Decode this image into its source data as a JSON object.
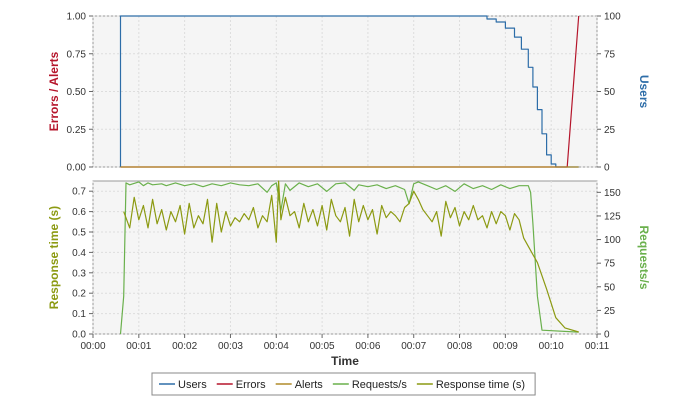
{
  "legend": [
    {
      "label": "Users",
      "color": "#2d6da8"
    },
    {
      "label": "Errors",
      "color": "#b5152b"
    },
    {
      "label": "Alerts",
      "color": "#b08b2a"
    },
    {
      "label": "Requests/s",
      "color": "#6ab04c"
    },
    {
      "label": "Response time (s)",
      "color": "#8c9a12"
    }
  ],
  "chart_data": [
    {
      "type": "line",
      "panel": "top",
      "x_unit": "minutes",
      "xlim": [
        0,
        11
      ],
      "left_axis": {
        "label": "Errors / Alerts",
        "color": "#b5152b",
        "ylim": [
          0,
          1
        ],
        "ticks": [
          "0.00",
          "0.25",
          "0.50",
          "0.75",
          "1.00"
        ]
      },
      "right_axis": {
        "label": "Users",
        "color": "#2d6da8",
        "ylim": [
          0,
          100
        ],
        "ticks": [
          "0",
          "25",
          "50",
          "75",
          "100"
        ]
      },
      "grid": true,
      "series": [
        {
          "name": "Users",
          "axis": "right",
          "color": "#2d6da8",
          "step": true,
          "x": [
            0.6,
            0.6,
            8.5,
            8.6,
            8.8,
            9.0,
            9.2,
            9.35,
            9.5,
            9.6,
            9.7,
            9.8,
            9.9,
            10.0,
            10.1,
            10.6
          ],
          "y": [
            0,
            100,
            100,
            98,
            96,
            92,
            86,
            78,
            66,
            53,
            38,
            22,
            8,
            2,
            0,
            0
          ]
        },
        {
          "name": "Errors",
          "axis": "left",
          "color": "#b5152b",
          "x": [
            0.6,
            10.35,
            10.6
          ],
          "y": [
            0,
            0,
            1
          ]
        },
        {
          "name": "Alerts",
          "axis": "left",
          "color": "#b08b2a",
          "x": [
            0.6,
            10.6
          ],
          "y": [
            0,
            0
          ]
        }
      ]
    },
    {
      "type": "line",
      "panel": "bottom",
      "x_unit": "minutes",
      "xlim": [
        0,
        11
      ],
      "xlabel": "Time",
      "x_ticks": [
        "00:00",
        "00:01",
        "00:02",
        "00:03",
        "00:04",
        "00:05",
        "00:06",
        "00:07",
        "00:08",
        "00:09",
        "00:10",
        "00:11"
      ],
      "left_axis": {
        "label": "Response time (s)",
        "color": "#8c9a12",
        "ylim": [
          0,
          0.75
        ],
        "ticks": [
          "0.0",
          "0.1",
          "0.2",
          "0.3",
          "0.4",
          "0.5",
          "0.6",
          "0.7"
        ]
      },
      "right_axis": {
        "label": "Requests/s",
        "color": "#6ab04c",
        "ylim": [
          0,
          162
        ],
        "ticks": [
          "0",
          "25",
          "50",
          "75",
          "100",
          "125",
          "150"
        ]
      },
      "grid": true,
      "series": [
        {
          "name": "Requests/s",
          "axis": "right",
          "color": "#6ab04c",
          "x": [
            0.6,
            0.67,
            0.72,
            0.8,
            1.0,
            1.1,
            1.2,
            1.3,
            1.5,
            1.6,
            1.8,
            2.0,
            2.2,
            2.4,
            2.6,
            2.8,
            3.0,
            3.2,
            3.4,
            3.6,
            3.8,
            3.9,
            4.0,
            4.1,
            4.2,
            4.3,
            4.5,
            4.7,
            4.9,
            5.1,
            5.3,
            5.5,
            5.7,
            5.8,
            6.0,
            6.2,
            6.4,
            6.6,
            6.8,
            6.9,
            7.0,
            7.1,
            7.3,
            7.5,
            7.7,
            7.9,
            8.1,
            8.3,
            8.5,
            8.7,
            8.9,
            9.1,
            9.3,
            9.5,
            9.55,
            9.6,
            9.7,
            9.8,
            10.6
          ],
          "y": [
            0,
            40,
            160,
            158,
            161,
            157,
            160,
            158,
            159,
            157,
            160,
            157,
            159,
            156,
            159,
            157,
            160,
            158,
            157,
            159,
            150,
            157,
            160,
            131,
            159,
            152,
            160,
            156,
            159,
            151,
            159,
            160,
            152,
            158,
            156,
            158,
            154,
            157,
            153,
            138,
            159,
            161,
            157,
            153,
            157,
            151,
            159,
            154,
            157,
            153,
            158,
            154,
            157,
            157,
            150,
            117,
            40,
            4,
            2
          ]
        },
        {
          "name": "Response time (s)",
          "axis": "left",
          "color": "#8c9a12",
          "x": [
            0.67,
            0.8,
            0.9,
            1.0,
            1.1,
            1.2,
            1.3,
            1.4,
            1.5,
            1.6,
            1.7,
            1.8,
            1.9,
            2.0,
            2.1,
            2.2,
            2.3,
            2.4,
            2.5,
            2.6,
            2.7,
            2.8,
            2.9,
            3.0,
            3.1,
            3.2,
            3.3,
            3.4,
            3.5,
            3.6,
            3.7,
            3.8,
            3.9,
            4.0,
            4.05,
            4.1,
            4.2,
            4.3,
            4.4,
            4.5,
            4.6,
            4.7,
            4.8,
            4.9,
            5.0,
            5.1,
            5.2,
            5.3,
            5.4,
            5.5,
            5.6,
            5.7,
            5.8,
            5.9,
            6.0,
            6.1,
            6.2,
            6.3,
            6.4,
            6.5,
            6.6,
            6.7,
            6.8,
            6.9,
            7.0,
            7.1,
            7.2,
            7.3,
            7.4,
            7.5,
            7.6,
            7.7,
            7.8,
            7.9,
            8.0,
            8.1,
            8.2,
            8.3,
            8.4,
            8.5,
            8.6,
            8.7,
            8.8,
            8.9,
            9.0,
            9.1,
            9.2,
            9.3,
            9.4,
            9.5,
            9.7,
            9.9,
            10.1,
            10.3,
            10.6
          ],
          "y": [
            0.6,
            0.52,
            0.67,
            0.56,
            0.63,
            0.52,
            0.66,
            0.54,
            0.61,
            0.51,
            0.6,
            0.55,
            0.63,
            0.49,
            0.64,
            0.52,
            0.58,
            0.54,
            0.66,
            0.45,
            0.64,
            0.5,
            0.6,
            0.53,
            0.57,
            0.55,
            0.59,
            0.56,
            0.62,
            0.52,
            0.58,
            0.55,
            0.68,
            0.45,
            0.75,
            0.56,
            0.67,
            0.58,
            0.6,
            0.52,
            0.64,
            0.55,
            0.61,
            0.53,
            0.63,
            0.51,
            0.66,
            0.58,
            0.55,
            0.62,
            0.48,
            0.66,
            0.55,
            0.63,
            0.56,
            0.61,
            0.49,
            0.63,
            0.57,
            0.6,
            0.58,
            0.55,
            0.62,
            0.64,
            0.7,
            0.66,
            0.61,
            0.58,
            0.55,
            0.6,
            0.48,
            0.65,
            0.57,
            0.62,
            0.53,
            0.6,
            0.56,
            0.63,
            0.56,
            0.58,
            0.52,
            0.6,
            0.54,
            0.6,
            0.58,
            0.51,
            0.59,
            0.56,
            0.47,
            0.43,
            0.35,
            0.22,
            0.08,
            0.03,
            0.01
          ]
        }
      ]
    }
  ]
}
